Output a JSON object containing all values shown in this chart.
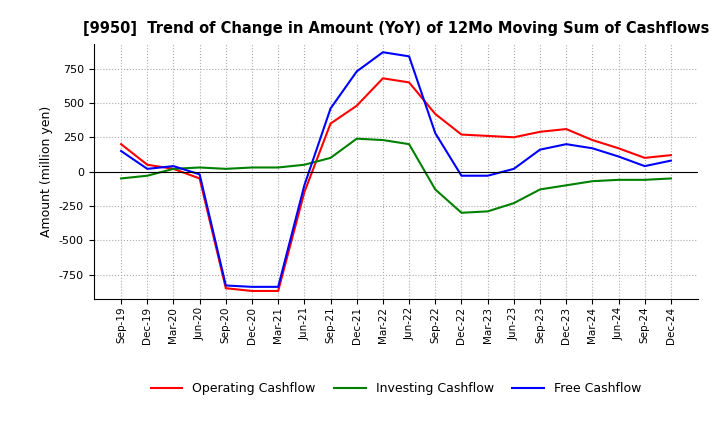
{
  "title": "[9950]  Trend of Change in Amount (YoY) of 12Mo Moving Sum of Cashflows",
  "ylabel": "Amount (million yen)",
  "x_labels": [
    "Sep-19",
    "Dec-19",
    "Mar-20",
    "Jun-20",
    "Sep-20",
    "Dec-20",
    "Mar-21",
    "Jun-21",
    "Sep-21",
    "Dec-21",
    "Mar-22",
    "Jun-22",
    "Sep-22",
    "Dec-22",
    "Mar-23",
    "Jun-23",
    "Sep-23",
    "Dec-23",
    "Mar-24",
    "Jun-24",
    "Sep-24",
    "Dec-24"
  ],
  "operating": [
    200,
    50,
    20,
    -50,
    -850,
    -870,
    -870,
    -150,
    350,
    480,
    680,
    650,
    420,
    270,
    260,
    250,
    290,
    310,
    230,
    170,
    100,
    120
  ],
  "investing": [
    -50,
    -30,
    20,
    30,
    20,
    30,
    30,
    50,
    100,
    240,
    230,
    200,
    -130,
    -300,
    -290,
    -230,
    -130,
    -100,
    -70,
    -60,
    -60,
    -50
  ],
  "free": [
    150,
    20,
    40,
    -20,
    -830,
    -840,
    -840,
    -100,
    460,
    730,
    870,
    840,
    280,
    -30,
    -30,
    20,
    160,
    200,
    170,
    110,
    40,
    80
  ],
  "ylim": [
    -930,
    930
  ],
  "yticks": [
    -750,
    -500,
    -250,
    0,
    250,
    500,
    750
  ],
  "operating_color": "#ff0000",
  "investing_color": "#008000",
  "free_color": "#0000ff",
  "grid_color": "#aaaaaa",
  "background_color": "#ffffff"
}
